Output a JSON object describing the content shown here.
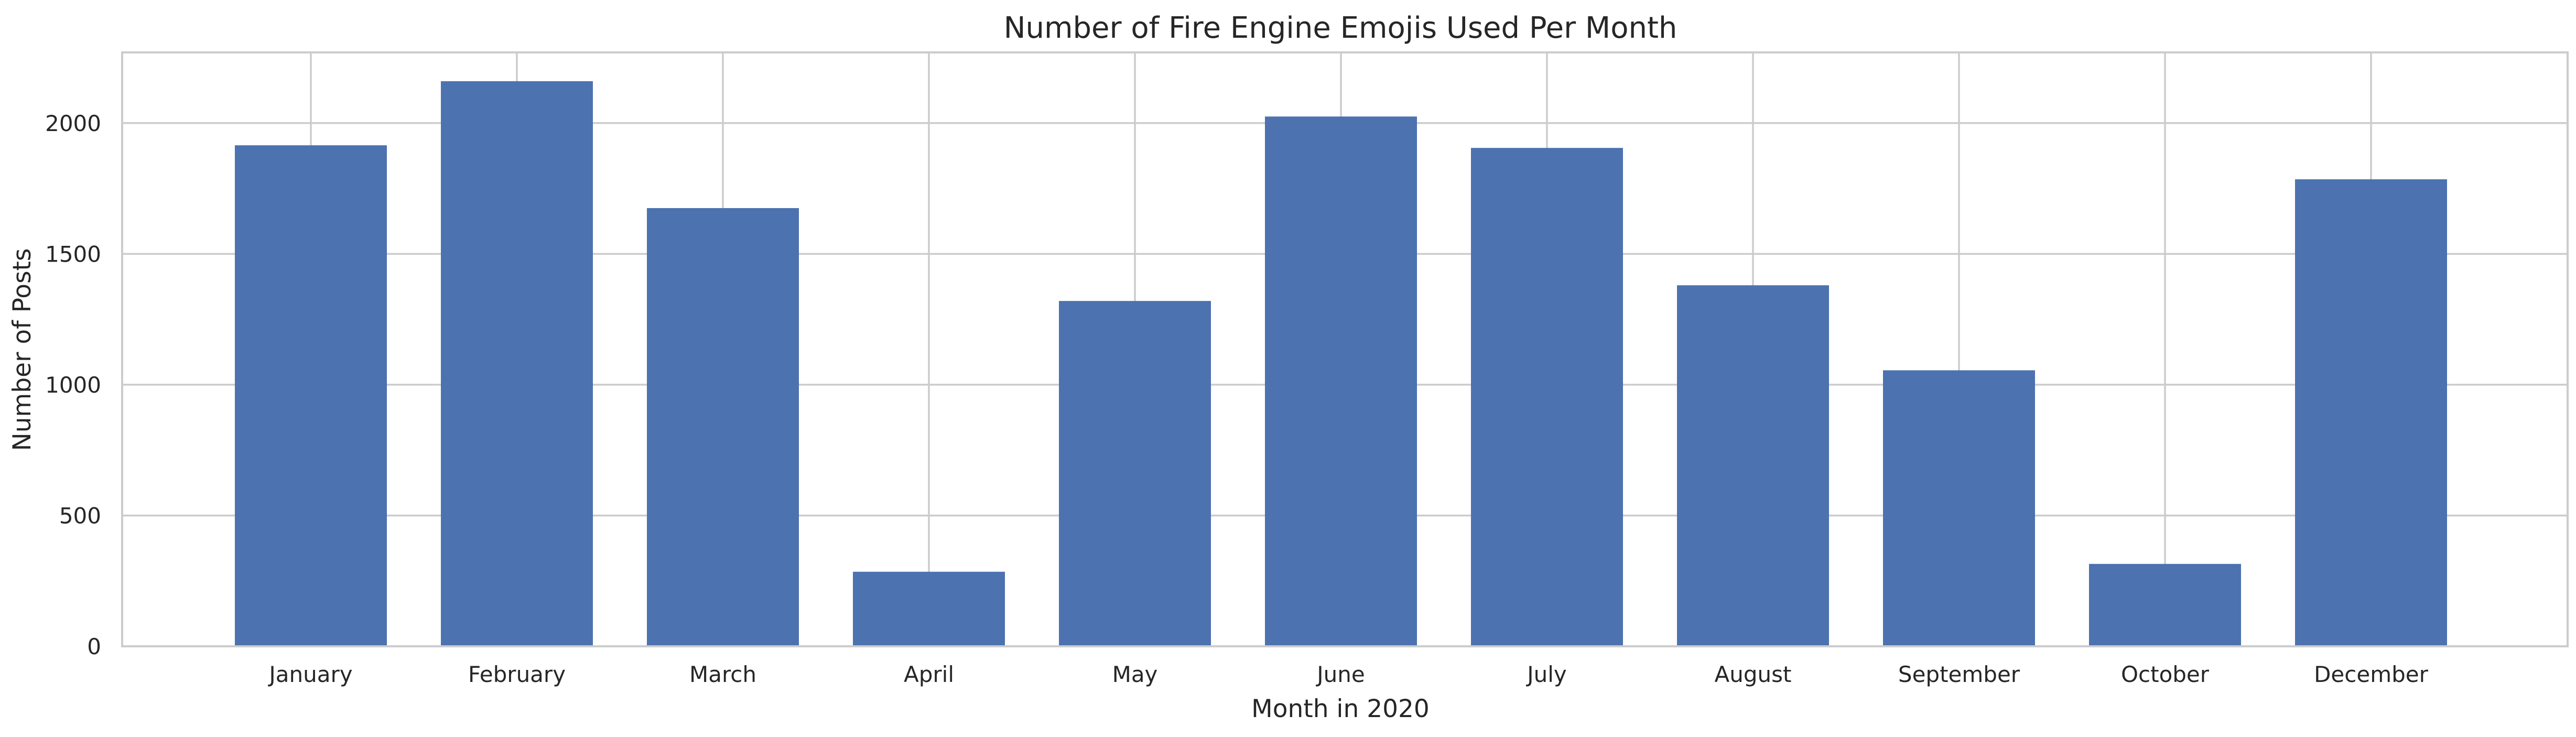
{
  "chart_data": {
    "type": "bar",
    "title": "Number of Fire Engine Emojis Used Per Month",
    "xlabel": "Month in 2020",
    "ylabel": "Number of Posts",
    "categories": [
      "January",
      "February",
      "March",
      "April",
      "May",
      "June",
      "July",
      "August",
      "September",
      "October",
      "December"
    ],
    "values": [
      1915,
      2160,
      1675,
      285,
      1320,
      2025,
      1905,
      1380,
      1055,
      315,
      1785
    ],
    "ylim": [
      0,
      2270
    ],
    "yticks": [
      0,
      500,
      1000,
      1500,
      2000
    ],
    "ytick_labels": [
      "0",
      "500",
      "1000",
      "1500",
      "2000"
    ],
    "grid": true,
    "bar_color": "#4c72b0",
    "grid_color": "#cccccc",
    "text_color": "#262626"
  }
}
